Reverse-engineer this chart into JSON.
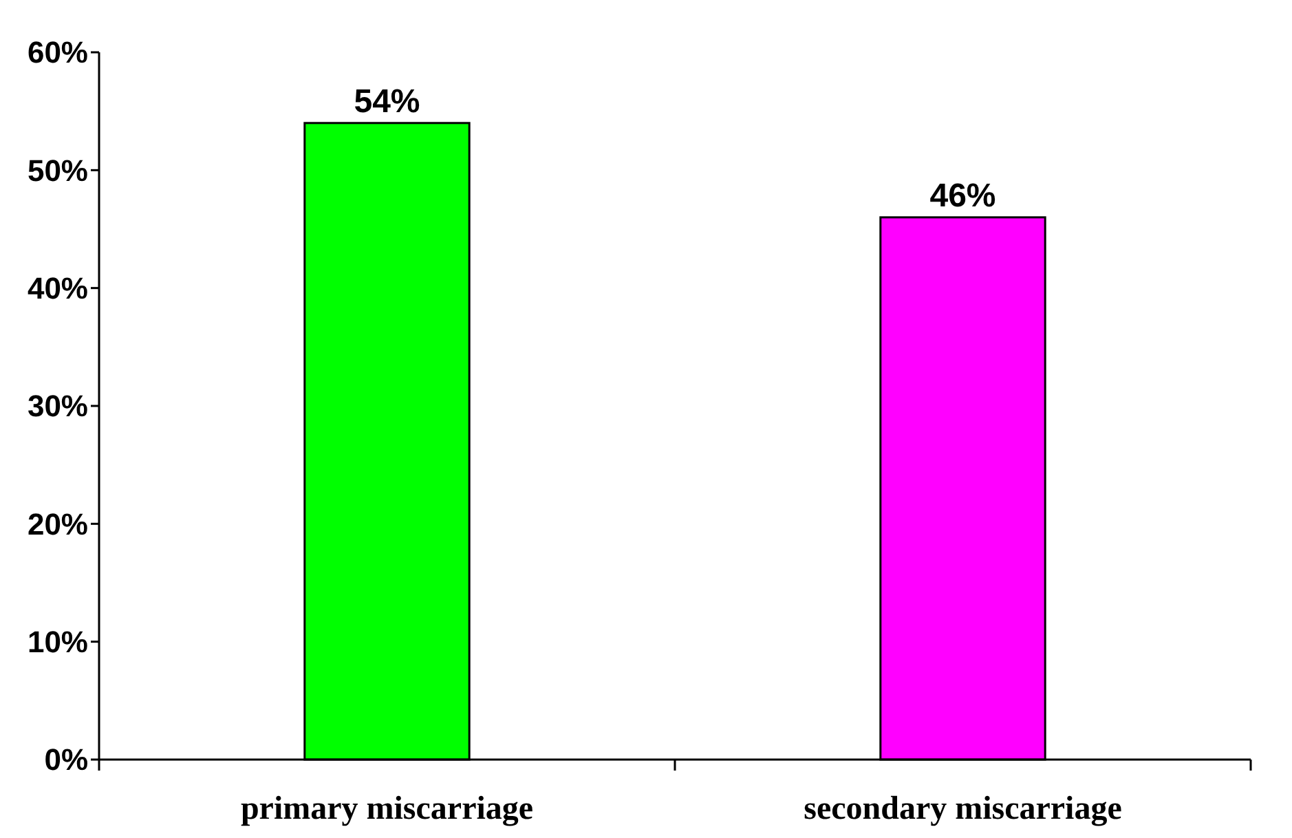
{
  "chart_data": {
    "type": "bar",
    "categories": [
      "primary miscarriage",
      "secondary miscarriage"
    ],
    "values": [
      54,
      46
    ],
    "colors": [
      "#00ff00",
      "#ff00ff"
    ],
    "value_labels": [
      "54%",
      "46%"
    ],
    "ylim": [
      0,
      60
    ],
    "yticks": [
      {
        "value": 0,
        "label": "0%"
      },
      {
        "value": 10,
        "label": "10%"
      },
      {
        "value": 20,
        "label": "20%"
      },
      {
        "value": 30,
        "label": "30%"
      },
      {
        "value": 40,
        "label": "40%"
      },
      {
        "value": 50,
        "label": "50%"
      },
      {
        "value": 60,
        "label": "60%"
      }
    ],
    "grid": false
  }
}
